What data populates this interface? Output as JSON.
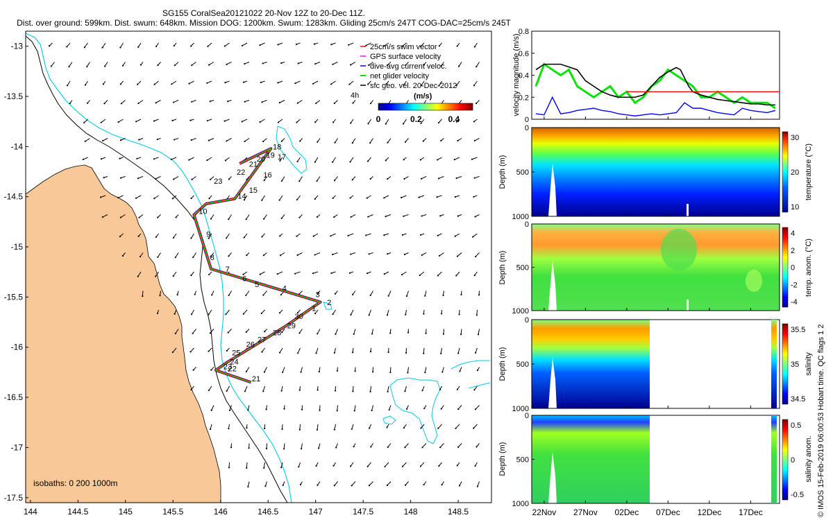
{
  "header": {
    "line1": "SG155 CoralSea20121022 20-Nov 12Z to 20-Dec 11Z.",
    "line2": "Dist. over ground: 599km. Dist. swum: 648km. Mission DOG: 1200km. Swum: 1283km. Gliding 25cm/s 247T COG-DAC=25cm/s 245T"
  },
  "credit": "© IMOS 15-Feb-2019 06:00:53 Hobart time. QC flags 1  2",
  "colors": {
    "land": "#f9c898",
    "coast": "#000000",
    "isobath200": "#000000",
    "isobath1000": "#00c8e6",
    "swim": "#ff0000",
    "gps": "#ff00ff",
    "dac": "#0000ff",
    "net": "#00e400",
    "track": "#000000"
  },
  "chart_data": [
    {
      "type": "scatter",
      "name": "map",
      "xlim": [
        143.95,
        148.85
      ],
      "ylim": [
        -17.55,
        -12.85
      ],
      "xticks": [
        144,
        144.5,
        145,
        145.5,
        146,
        146.5,
        147,
        147.5,
        148,
        148.5
      ],
      "xtick_labels": [
        "144",
        "144.5",
        "145",
        "145.5",
        "146",
        "146.5",
        "147",
        "147.5",
        "148",
        "148.5"
      ],
      "yticks": [
        -13,
        -13.5,
        -14,
        -14.5,
        -15,
        -15.5,
        -16,
        -16.5,
        -17,
        -17.5
      ],
      "ytick_labels": [
        "-13",
        "-13.5",
        "-14",
        "-14.5",
        "-15",
        "-15.5",
        "-16",
        "-16.5",
        "-17",
        "-17.5"
      ],
      "legend": {
        "entries": [
          "25cm/s swim vector",
          "GPS surface velocity",
          "dive-avg current veloc.",
          "net glider velocity",
          "sfc geo. vel. 20-Dec-2012"
        ],
        "h_label": "4h",
        "unit_label": "(m/s)",
        "colorbar_ticks": [
          "0",
          "0.2",
          "0.4"
        ],
        "colorbar_range": [
          0,
          0.5
        ]
      },
      "isobaths_label": "isobaths: 0   200  1000m",
      "track": [
        [
          146.2,
          -14.17
        ],
        [
          146.53,
          -14.02
        ],
        [
          146.15,
          -14.52
        ],
        [
          145.85,
          -14.57
        ],
        [
          145.72,
          -14.68
        ],
        [
          145.9,
          -15.22
        ],
        [
          146.25,
          -15.32
        ],
        [
          146.6,
          -15.42
        ],
        [
          147.05,
          -15.55
        ],
        [
          146.7,
          -15.78
        ],
        [
          146.45,
          -15.93
        ],
        [
          146.07,
          -16.15
        ],
        [
          145.95,
          -16.23
        ],
        [
          146.32,
          -16.35
        ]
      ],
      "waypoints": [
        {
          "label": "18",
          "x": 146.55,
          "y": -14.03
        },
        {
          "label": "17",
          "x": 146.6,
          "y": -14.13
        },
        {
          "label": "19",
          "x": 146.48,
          "y": -14.11
        },
        {
          "label": "20",
          "x": 146.38,
          "y": -14.15
        },
        {
          "label": "21",
          "x": 146.3,
          "y": -14.2
        },
        {
          "label": "22",
          "x": 146.17,
          "y": -14.28
        },
        {
          "label": "23",
          "x": 145.93,
          "y": -14.37
        },
        {
          "label": "16",
          "x": 146.45,
          "y": -14.31
        },
        {
          "label": "15",
          "x": 146.3,
          "y": -14.46
        },
        {
          "label": "14",
          "x": 146.18,
          "y": -14.52
        },
        {
          "label": "10",
          "x": 145.77,
          "y": -14.67
        },
        {
          "label": "9",
          "x": 145.85,
          "y": -14.9
        },
        {
          "label": "8",
          "x": 145.89,
          "y": -15.13
        },
        {
          "label": "7",
          "x": 146.05,
          "y": -15.25
        },
        {
          "label": "6",
          "x": 146.23,
          "y": -15.34
        },
        {
          "label": "5",
          "x": 146.36,
          "y": -15.4
        },
        {
          "label": "4",
          "x": 146.65,
          "y": -15.44
        },
        {
          "label": "3",
          "x": 147.0,
          "y": -15.5
        },
        {
          "label": "2",
          "x": 147.12,
          "y": -15.58
        },
        {
          "label": "1",
          "x": 146.96,
          "y": -15.64
        },
        {
          "label": "30",
          "x": 146.78,
          "y": -15.72
        },
        {
          "label": "29",
          "x": 146.7,
          "y": -15.81
        },
        {
          "label": "28",
          "x": 146.55,
          "y": -15.88
        },
        {
          "label": "27",
          "x": 146.39,
          "y": -15.95
        },
        {
          "label": "26",
          "x": 146.27,
          "y": -16.0
        },
        {
          "label": "25",
          "x": 146.12,
          "y": -16.08
        },
        {
          "label": "24",
          "x": 146.1,
          "y": -16.17
        },
        {
          "label": "23",
          "x": 146.03,
          "y": -16.22
        },
        {
          "label": "22",
          "x": 146.08,
          "y": -16.24
        },
        {
          "label": "21",
          "x": 146.33,
          "y": -16.34
        }
      ]
    },
    {
      "type": "line",
      "name": "velocity",
      "ylabel": "velocity magnitude (m/s)",
      "ylim": [
        0,
        0.8
      ],
      "yticks": [
        "0",
        "0.2",
        "0.4",
        "0.6",
        "0.8"
      ],
      "xlim_days": [
        20.5,
        50.5
      ],
      "series": [
        {
          "name": "net glider velocity",
          "color": "#00e400",
          "x": [
            21,
            22,
            23,
            24,
            25,
            26,
            27,
            28,
            29,
            30,
            31,
            32,
            33,
            34,
            35,
            36,
            37,
            38,
            39,
            40,
            41,
            42,
            43,
            44,
            45,
            46,
            47,
            48,
            49,
            50
          ],
          "values": [
            0.3,
            0.5,
            0.45,
            0.4,
            0.45,
            0.3,
            0.25,
            0.2,
            0.25,
            0.3,
            0.2,
            0.25,
            0.15,
            0.2,
            0.3,
            0.35,
            0.45,
            0.4,
            0.35,
            0.3,
            0.2,
            0.2,
            0.25,
            0.2,
            0.15,
            0.2,
            0.15,
            0.15,
            0.15,
            0.1
          ]
        },
        {
          "name": "smoothed speed",
          "color": "#000000",
          "x": [
            21,
            22,
            24,
            26,
            27,
            28,
            29,
            30,
            31,
            32,
            33,
            34,
            35,
            36,
            37,
            38,
            38.5,
            39.5,
            40,
            41,
            42,
            43,
            44,
            45,
            46,
            47,
            48,
            49,
            50
          ],
          "values": [
            0.45,
            0.5,
            0.5,
            0.45,
            0.35,
            0.3,
            0.25,
            0.22,
            0.2,
            0.2,
            0.2,
            0.22,
            0.3,
            0.38,
            0.43,
            0.47,
            0.45,
            0.3,
            0.25,
            0.22,
            0.2,
            0.18,
            0.17,
            0.16,
            0.15,
            0.14,
            0.14,
            0.13,
            0.13
          ]
        },
        {
          "name": "dive-avg current",
          "color": "#0000ff",
          "x": [
            21,
            22,
            23,
            24,
            25,
            26,
            27,
            28,
            29,
            30,
            31,
            32,
            33,
            34,
            35,
            36,
            37,
            38,
            39,
            40,
            41,
            42,
            43,
            44,
            45,
            46,
            47,
            48,
            49,
            50
          ],
          "values": [
            0.05,
            0.04,
            0.2,
            0.05,
            0.06,
            0.08,
            0.09,
            0.1,
            0.08,
            0.07,
            0.05,
            0.04,
            0.03,
            0.04,
            0.05,
            0.04,
            0.05,
            0.06,
            0.15,
            0.1,
            0.1,
            0.08,
            0.06,
            0.05,
            0.04,
            0.1,
            0.08,
            0.07,
            0.06,
            0.08
          ]
        },
        {
          "name": "25cm/s reference",
          "color": "#ff0000",
          "x": [
            32,
            50.5
          ],
          "values": [
            0.25,
            0.25
          ]
        }
      ]
    },
    {
      "type": "heatmap",
      "name": "temperature",
      "ylabel": "Depth (m)",
      "yticks": [
        "0",
        "500",
        "1000"
      ],
      "colorbar_label": "temperature (°C)",
      "colorbar_ticks": [
        "30",
        "20",
        "10"
      ]
    },
    {
      "type": "heatmap",
      "name": "temp-anomaly",
      "ylabel": "Depth (m)",
      "yticks": [
        "0",
        "500",
        "1000"
      ],
      "colorbar_label": "temp. anom. (°C)",
      "colorbar_ticks": [
        "4",
        "2",
        "0",
        "-2",
        "-4"
      ]
    },
    {
      "type": "heatmap",
      "name": "salinity",
      "ylabel": "Depth (m)",
      "yticks": [
        "0",
        "500",
        "1000"
      ],
      "colorbar_label": "salinity",
      "colorbar_ticks": [
        "35.5",
        "35",
        "34.5"
      ]
    },
    {
      "type": "heatmap",
      "name": "salinity-anomaly",
      "ylabel": "Depth (m)",
      "yticks": [
        "0",
        "500",
        "1000"
      ],
      "colorbar_label": "salinity anom.",
      "colorbar_ticks": [
        "0.5",
        "0",
        "-0.5"
      ],
      "xtick_labels": [
        "22Nov",
        "27Nov",
        "02Dec",
        "07Dec",
        "12Dec",
        "17Dec"
      ],
      "xtick_days": [
        22,
        27,
        32,
        37,
        42,
        47
      ]
    }
  ]
}
